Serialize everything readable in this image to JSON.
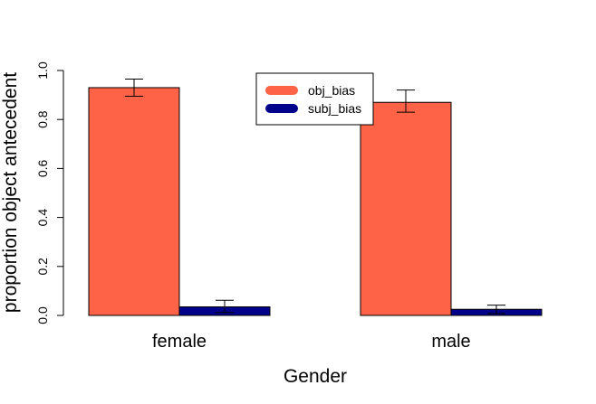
{
  "chart_data": {
    "type": "bar",
    "categories": [
      "female",
      "male"
    ],
    "series": [
      {
        "name": "obj_bias",
        "color": "#FF6347",
        "values": [
          0.93,
          0.87
        ],
        "err_low": [
          0.895,
          0.83
        ],
        "err_high": [
          0.965,
          0.92
        ]
      },
      {
        "name": "subj_bias",
        "color": "#00008B",
        "values": [
          0.035,
          0.025
        ],
        "err_low": [
          0.012,
          0.008
        ],
        "err_high": [
          0.062,
          0.042
        ]
      }
    ],
    "xlabel": "Gender",
    "ylabel": "proportion object antecedent",
    "ylim": [
      0,
      1.0
    ],
    "yticks": [
      "0.0",
      "0.2",
      "0.4",
      "0.6",
      "0.8",
      "1.0"
    ],
    "grid": false,
    "legend_position": "top-center"
  }
}
